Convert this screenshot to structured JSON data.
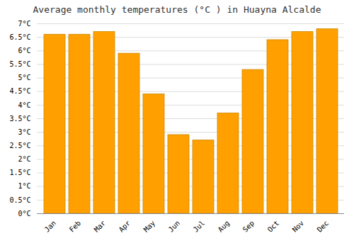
{
  "chart_data": {
    "type": "bar",
    "title": "Average monthly temperatures (°C ) in Huayna Alcalde",
    "categories": [
      "Jan",
      "Feb",
      "Mar",
      "Apr",
      "May",
      "Jun",
      "Jul",
      "Aug",
      "Sep",
      "Oct",
      "Nov",
      "Dec"
    ],
    "values": [
      6.6,
      6.6,
      6.7,
      5.9,
      4.4,
      2.9,
      2.7,
      3.7,
      5.3,
      6.4,
      6.7,
      6.8
    ],
    "color": "#FFA000",
    "ylim": [
      0,
      7
    ],
    "yticks": [
      {
        "value": 0,
        "label": "0°C"
      },
      {
        "value": 0.5,
        "label": "0.5°C"
      },
      {
        "value": 1,
        "label": "1°C"
      },
      {
        "value": 1.5,
        "label": "1.5°C"
      },
      {
        "value": 2,
        "label": "2°C"
      },
      {
        "value": 2.5,
        "label": "2.5°C"
      },
      {
        "value": 3,
        "label": "3°C"
      },
      {
        "value": 3.5,
        "label": "3.5°C"
      },
      {
        "value": 4,
        "label": "4°C"
      },
      {
        "value": 4.5,
        "label": "4.5°C"
      },
      {
        "value": 5,
        "label": "5°C"
      },
      {
        "value": 5.5,
        "label": "5.5°C"
      },
      {
        "value": 6,
        "label": "6°C"
      },
      {
        "value": 6.5,
        "label": "6.5°C"
      },
      {
        "value": 7,
        "label": "7°C"
      }
    ],
    "grid": true
  }
}
